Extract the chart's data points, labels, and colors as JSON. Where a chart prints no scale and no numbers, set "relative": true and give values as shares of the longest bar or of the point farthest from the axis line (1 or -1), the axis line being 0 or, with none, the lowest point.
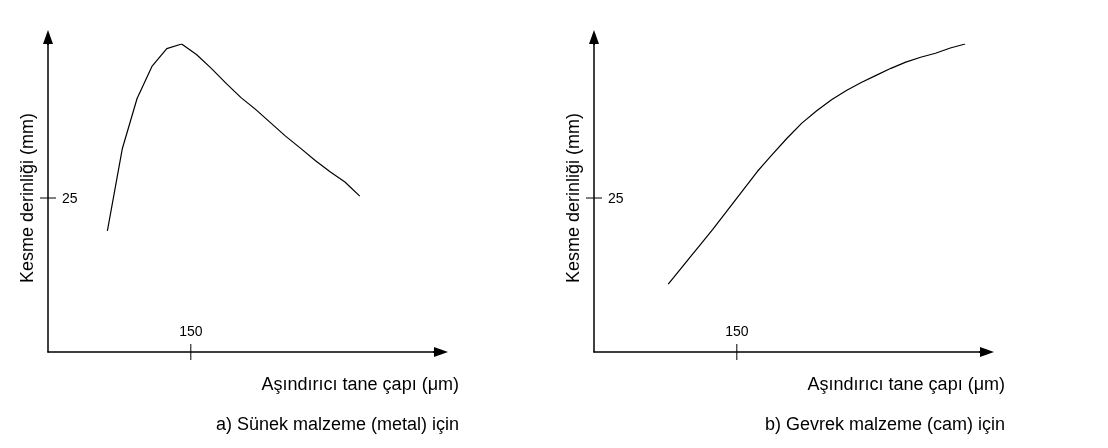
{
  "chart_data": [
    {
      "type": "line",
      "title": "a) Sünek malzeme (metal) için",
      "xlabel": "Aşındırıcı tane çapı (μm)",
      "ylabel": "Kesme derinliği (mm)",
      "relative": true,
      "marker": "none",
      "annotations": [
        "25",
        "150"
      ],
      "categories": [
        null,
        null,
        null,
        null,
        null,
        null,
        null,
        null,
        null,
        null,
        null,
        null,
        null,
        null,
        null,
        null,
        null,
        null,
        null,
        null,
        null,
        null,
        null,
        null,
        null,
        null,
        null
      ],
      "series": [
        {
          "color": "#000000",
          "values": [
            null,
            null,
            null,
            null,
            0.393,
            0.659,
            0.823,
            0.927,
            0.985,
            1,
            0.966,
            0.921,
            0.872,
            0.826,
            0.787,
            0.744,
            0.701,
            0.662,
            0.622,
            0.585,
            0.552,
            0.506,
            null,
            null,
            null,
            null,
            null
          ]
        }
      ]
    },
    {
      "type": "line",
      "title": "b) Gevrek malzeme (cam) için",
      "xlabel": "Aşındırıcı tane çapı (μm)",
      "ylabel": "Kesme derinliği (mm)",
      "relative": true,
      "marker": "none",
      "annotations": [
        "25",
        "150"
      ],
      "categories": [
        null,
        null,
        null,
        null,
        null,
        null,
        null,
        null,
        null,
        null,
        null,
        null,
        null,
        null,
        null,
        null,
        null,
        null,
        null,
        null,
        null,
        null,
        null,
        null,
        null,
        null,
        null
      ],
      "series": [
        {
          "color": "#000000",
          "values": [
            null,
            null,
            null,
            null,
            null,
            0.22,
            0.28,
            0.339,
            0.398,
            0.461,
            0.523,
            0.586,
            0.641,
            0.694,
            0.743,
            0.783,
            0.819,
            0.849,
            0.875,
            0.898,
            0.921,
            0.941,
            0.957,
            0.97,
            0.987,
            1,
            null
          ]
        }
      ]
    }
  ]
}
